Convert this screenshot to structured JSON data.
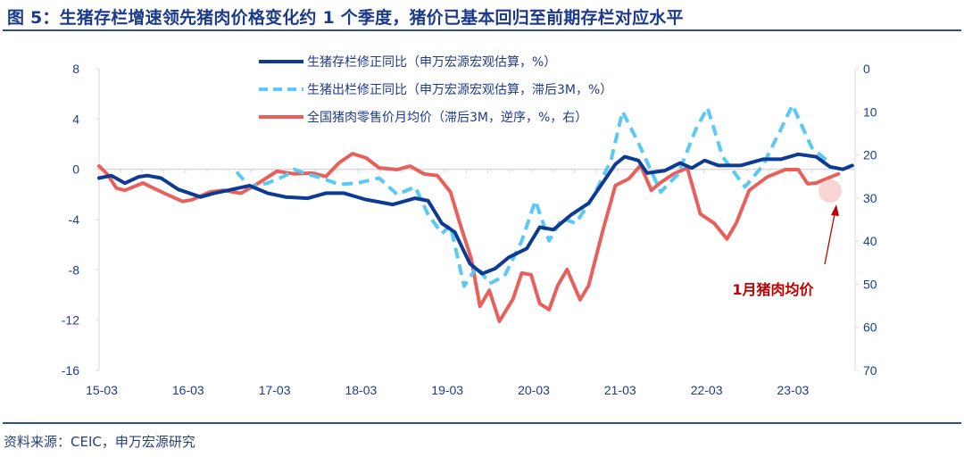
{
  "title": "图 5：生猪存栏增速领先猪肉价格变化约 1 个季度，猪价已基本回归至前期存栏对应水平",
  "source": "资料来源：CEIC，申万宏源研究",
  "chart_data": {
    "type": "line",
    "x_unit": "months since 2015-03",
    "x_ticks": [
      {
        "label": "15-03",
        "x": 0
      },
      {
        "label": "16-03",
        "x": 12
      },
      {
        "label": "17-03",
        "x": 24
      },
      {
        "label": "18-03",
        "x": 36
      },
      {
        "label": "19-03",
        "x": 48
      },
      {
        "label": "20-03",
        "x": 60
      },
      {
        "label": "21-03",
        "x": 72
      },
      {
        "label": "22-03",
        "x": 84
      },
      {
        "label": "23-03",
        "x": 96
      }
    ],
    "xlim": [
      0,
      105
    ],
    "y_left": {
      "ylim": [
        -16,
        8
      ],
      "ticks": [
        "8",
        "4",
        "0",
        "-4",
        "-8",
        "-12",
        "-16"
      ],
      "tick_values": [
        8,
        4,
        0,
        -4,
        -8,
        -12,
        -16
      ]
    },
    "y_right": {
      "ylim": [
        0,
        70
      ],
      "reversed": true,
      "ticks": [
        "0",
        "10",
        "20",
        "30",
        "40",
        "50",
        "60",
        "70"
      ],
      "tick_values": [
        0,
        10,
        20,
        30,
        40,
        50,
        60,
        70
      ]
    },
    "legend_placement": "top-center",
    "annotation": {
      "text": "1月猪肉均价",
      "color": "#c00000",
      "target": [
        104,
        25
      ]
    },
    "series": [
      {
        "name": "生猪存栏修正同比（申万宏源宏观估算，%）",
        "axis": "left",
        "color": "#0d3b94",
        "style": "solid",
        "points": [
          [
            0,
            -0.7
          ],
          [
            1.7,
            -0.5
          ],
          [
            3.6,
            -1.1
          ],
          [
            5.5,
            -0.6
          ],
          [
            6.7,
            -0.5
          ],
          [
            8.6,
            -0.7
          ],
          [
            11,
            -1.6
          ],
          [
            14.1,
            -2.2
          ],
          [
            16,
            -1.9
          ],
          [
            18.5,
            -1.6
          ],
          [
            20.9,
            -1.3
          ],
          [
            23.4,
            -1.9
          ],
          [
            25.9,
            -2.2
          ],
          [
            29,
            -2.3
          ],
          [
            31.5,
            -1.9
          ],
          [
            34,
            -1.9
          ],
          [
            37,
            -2.4
          ],
          [
            40.8,
            -2.8
          ],
          [
            43.9,
            -2.3
          ],
          [
            45.7,
            -2.5
          ],
          [
            47.6,
            -4.3
          ],
          [
            49.4,
            -5.0
          ],
          [
            51.5,
            -7.5
          ],
          [
            53.2,
            -8.3
          ],
          [
            55,
            -7.9
          ],
          [
            56.9,
            -7.0
          ],
          [
            59.4,
            -6.3
          ],
          [
            61.2,
            -4.6
          ],
          [
            63.1,
            -4.8
          ],
          [
            65.6,
            -3.6
          ],
          [
            68,
            -2.7
          ],
          [
            69.9,
            -1.1
          ],
          [
            71.7,
            0.4
          ],
          [
            73,
            1.0
          ],
          [
            74.9,
            0.7
          ],
          [
            76.1,
            -0.3
          ],
          [
            78.6,
            -0.1
          ],
          [
            80.7,
            0.5
          ],
          [
            82.3,
            0.1
          ],
          [
            84.1,
            0.7
          ],
          [
            86,
            0.3
          ],
          [
            89.1,
            0.3
          ],
          [
            92.2,
            0.8
          ],
          [
            94.7,
            0.8
          ],
          [
            97.1,
            1.2
          ],
          [
            99.6,
            1.0
          ],
          [
            101.5,
            0.2
          ],
          [
            103.3,
            0.0
          ],
          [
            104.6,
            0.3
          ]
        ]
      },
      {
        "name": "生猪出栏修正同比（申万宏源宏观估算，滞后3M，%）",
        "axis": "left",
        "color": "#5bc8f5",
        "style": "dashed",
        "points": [
          [
            19.1,
            -0.2
          ],
          [
            20.9,
            -1.4
          ],
          [
            23.4,
            -1.1
          ],
          [
            25.9,
            -0.5
          ],
          [
            27.1,
            0.0
          ],
          [
            29,
            -0.4
          ],
          [
            30.9,
            -0.7
          ],
          [
            33.3,
            -1.2
          ],
          [
            35.8,
            -1.1
          ],
          [
            38.9,
            -0.7
          ],
          [
            41.4,
            -2.0
          ],
          [
            43.9,
            -1.4
          ],
          [
            45.7,
            -3.6
          ],
          [
            47.6,
            -5.1
          ],
          [
            48.8,
            -4.5
          ],
          [
            50.7,
            -9.3
          ],
          [
            52.5,
            -7.7
          ],
          [
            54.2,
            -9.1
          ],
          [
            56.3,
            -8.5
          ],
          [
            58.7,
            -5.7
          ],
          [
            60.6,
            -2.5
          ],
          [
            62.5,
            -5.7
          ],
          [
            64.3,
            -3.9
          ],
          [
            66.2,
            -4.3
          ],
          [
            68.6,
            -2.2
          ],
          [
            71.1,
            0.7
          ],
          [
            72.7,
            4.6
          ],
          [
            74.9,
            2.1
          ],
          [
            78,
            -1.8
          ],
          [
            80.4,
            -0.4
          ],
          [
            82.9,
            3.2
          ],
          [
            84.5,
            4.9
          ],
          [
            86.6,
            1.0
          ],
          [
            89.7,
            -1.4
          ],
          [
            92.2,
            0.3
          ],
          [
            94.7,
            3.2
          ],
          [
            96.3,
            5.1
          ],
          [
            99,
            1.7
          ],
          [
            101.5,
            0.5
          ]
        ]
      },
      {
        "name": "全国猪肉零售价月均价（滞后3M，逆序，%，右）",
        "axis": "right",
        "color": "#e8605c",
        "style": "solid",
        "points": [
          [
            0,
            22.6
          ],
          [
            1.1,
            24.4
          ],
          [
            2.4,
            27.7
          ],
          [
            3.6,
            28.2
          ],
          [
            6.1,
            26.5
          ],
          [
            7.3,
            27.5
          ],
          [
            9.2,
            29.0
          ],
          [
            11.6,
            30.8
          ],
          [
            12.9,
            30.4
          ],
          [
            15.4,
            28.6
          ],
          [
            17.2,
            28.2
          ],
          [
            19.7,
            28.9
          ],
          [
            21.6,
            27.1
          ],
          [
            24.7,
            23.8
          ],
          [
            27.1,
            24.4
          ],
          [
            29.6,
            24.2
          ],
          [
            31.5,
            25.0
          ],
          [
            33.3,
            21.9
          ],
          [
            35.2,
            19.7
          ],
          [
            37.1,
            20.7
          ],
          [
            38.9,
            23.0
          ],
          [
            41.4,
            23.4
          ],
          [
            43.2,
            22.6
          ],
          [
            45.1,
            24.4
          ],
          [
            47,
            24.8
          ],
          [
            48.8,
            28.6
          ],
          [
            50.1,
            35.8
          ],
          [
            51.7,
            44.1
          ],
          [
            52.9,
            55.1
          ],
          [
            54.2,
            51.4
          ],
          [
            55.6,
            58.6
          ],
          [
            57.5,
            53.4
          ],
          [
            58.7,
            47.4
          ],
          [
            60,
            47.8
          ],
          [
            61.2,
            54.5
          ],
          [
            62.5,
            55.9
          ],
          [
            63.7,
            50.3
          ],
          [
            65,
            46.6
          ],
          [
            66.8,
            53.6
          ],
          [
            68,
            50.3
          ],
          [
            69.9,
            37.9
          ],
          [
            71.7,
            27.1
          ],
          [
            73.6,
            25.5
          ],
          [
            75.2,
            22.4
          ],
          [
            76.7,
            28.2
          ],
          [
            77.9,
            26.5
          ],
          [
            79.8,
            24.4
          ],
          [
            81.7,
            23.0
          ],
          [
            83.5,
            33.7
          ],
          [
            85.4,
            35.8
          ],
          [
            87.2,
            39.5
          ],
          [
            88.5,
            35.8
          ],
          [
            90.3,
            28.2
          ],
          [
            92.8,
            25.1
          ],
          [
            95.3,
            23.4
          ],
          [
            97.1,
            23.4
          ],
          [
            98.4,
            26.7
          ],
          [
            99.6,
            26.5
          ],
          [
            102.1,
            24.8
          ],
          [
            102.7,
            24.4
          ]
        ]
      }
    ]
  }
}
